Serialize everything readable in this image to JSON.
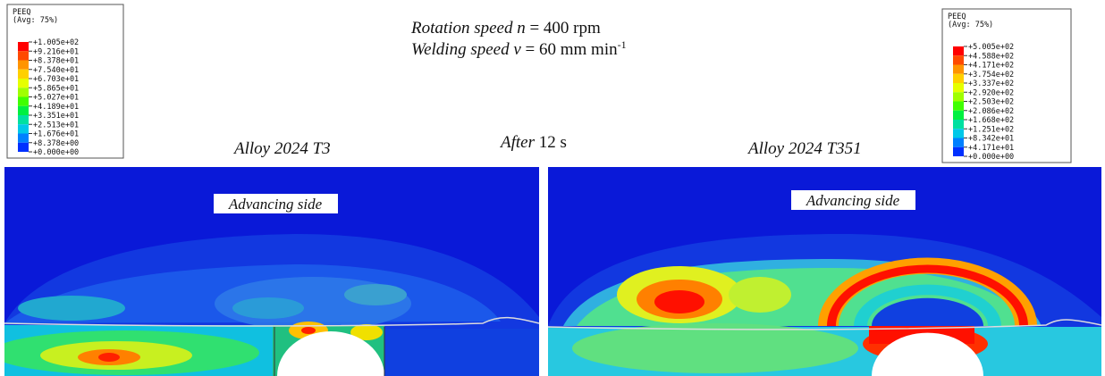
{
  "header": {
    "line1": [
      "Rotation speed n",
      " = 400 rpm"
    ],
    "line2": [
      "Welding speed v",
      " = 60 mm min",
      "-1"
    ],
    "time": [
      "After",
      " 12 s"
    ]
  },
  "panels": [
    {
      "title": "Alloy 2024 T3",
      "label": "Advancing side"
    },
    {
      "title": "Alloy 2024 T351",
      "label": "Advancing side"
    }
  ],
  "legends": [
    {
      "title": "PEEQ",
      "subtitle": "(Avg: 75%)",
      "labels": [
        "+1.005e+02",
        "+9.216e+01",
        "+8.378e+01",
        "+7.540e+01",
        "+6.703e+01",
        "+5.865e+01",
        "+5.027e+01",
        "+4.189e+01",
        "+3.351e+01",
        "+2.513e+01",
        "+1.676e+01",
        "+8.378e+00",
        "+0.000e+00"
      ]
    },
    {
      "title": "PEEQ",
      "subtitle": "(Avg: 75%)",
      "labels": [
        "+5.005e+02",
        "+4.588e+02",
        "+4.171e+02",
        "+3.754e+02",
        "+3.337e+02",
        "+2.920e+02",
        "+2.503e+02",
        "+2.086e+02",
        "+1.668e+02",
        "+1.251e+02",
        "+8.342e+01",
        "+4.171e+01",
        "+0.000e+00"
      ]
    }
  ]
}
